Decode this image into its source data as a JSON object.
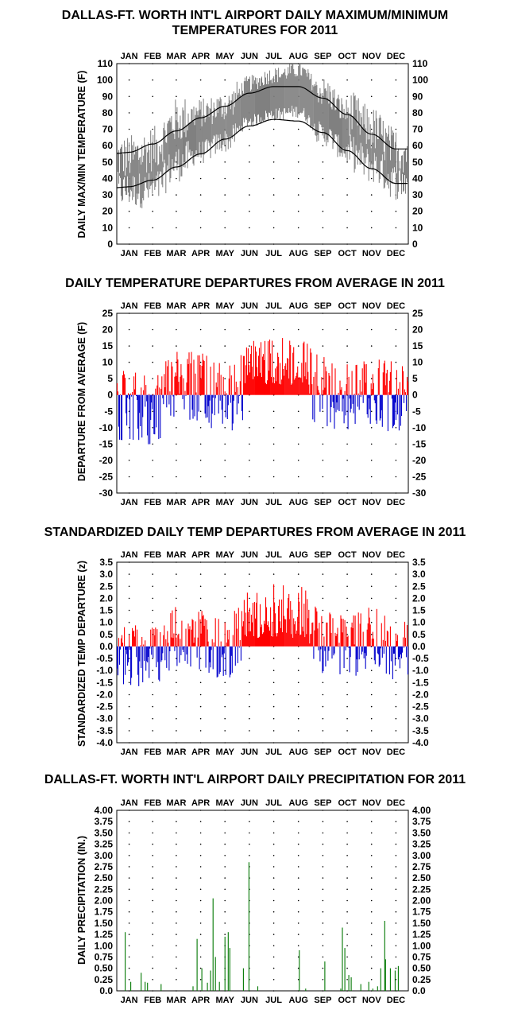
{
  "chart_data": [
    {
      "type": "line",
      "title": [
        "DALLAS-FT. WORTH INT'L AIRPORT DAILY MAXIMUM/MINIMUM",
        "TEMPERATURES FOR 2011"
      ],
      "ylabel": "DAILY MAX/MIN TEMPERATURE (F)",
      "ylim": [
        0,
        110
      ],
      "yticks": [
        0,
        10,
        20,
        30,
        40,
        50,
        60,
        70,
        80,
        90,
        100,
        110
      ],
      "categories": [
        "JAN",
        "FEB",
        "MAR",
        "APR",
        "MAY",
        "JUN",
        "JUL",
        "AUG",
        "SEP",
        "OCT",
        "NOV",
        "DEC"
      ],
      "grid": "dotted",
      "series": [
        {
          "values_monthly_normal_high": [
            56,
            61,
            69,
            77,
            84,
            92,
            96,
            96,
            89,
            79,
            67,
            58
          ]
        },
        {
          "values_monthly_normal_low": [
            35,
            39,
            47,
            55,
            64,
            72,
            76,
            75,
            68,
            57,
            46,
            37
          ]
        },
        {
          "values_monthly_obs_high": [
            53,
            58,
            75,
            80,
            84,
            98,
            103,
            106,
            93,
            80,
            70,
            57
          ]
        },
        {
          "values_monthly_obs_low": [
            33,
            33,
            49,
            56,
            63,
            75,
            79,
            81,
            67,
            56,
            48,
            38
          ]
        }
      ],
      "colors": {
        "observed": "#808080",
        "normal": "#000000"
      }
    },
    {
      "type": "bar",
      "title": "DAILY TEMPERATURE DEPARTURES FROM AVERAGE IN 2011",
      "ylabel": "DEPARTURE FROM AVERAGE (F)",
      "ylim": [
        -30,
        25
      ],
      "yticks": [
        25,
        20,
        15,
        10,
        5,
        0,
        -5,
        -10,
        -15,
        -20,
        -25,
        -30
      ],
      "categories": [
        "JAN",
        "FEB",
        "MAR",
        "APR",
        "MAY",
        "JUN",
        "JUL",
        "AUG",
        "SEP",
        "OCT",
        "NOV",
        "DEC"
      ],
      "monthly_mean_departure": [
        -3,
        -5,
        3,
        2,
        -1,
        4,
        5,
        6,
        1,
        0,
        2,
        -1
      ],
      "colors": {
        "positive": "#ff0000",
        "negative": "#0000cc"
      }
    },
    {
      "type": "bar",
      "title": "STANDARDIZED DAILY TEMP DEPARTURES FROM AVERAGE IN 2011",
      "ylabel": "STANDARDIZED TEMP DEPARTURE (z)",
      "ylim": [
        -4.0,
        3.5
      ],
      "yticks": [
        "3.5",
        "3.0",
        "2.5",
        "2.0",
        "1.5",
        "1.0",
        "0.5",
        "0.0",
        "-0.5",
        "-1.0",
        "-1.5",
        "-2.0",
        "-2.5",
        "-3.0",
        "-3.5",
        "-4.0"
      ],
      "categories": [
        "JAN",
        "FEB",
        "MAR",
        "APR",
        "MAY",
        "JUN",
        "JUL",
        "AUG",
        "SEP",
        "OCT",
        "NOV",
        "DEC"
      ],
      "monthly_mean_departure": [
        -0.4,
        -0.5,
        0.4,
        0.3,
        -0.1,
        0.8,
        1.2,
        1.3,
        0.2,
        0.0,
        0.3,
        -0.1
      ],
      "colors": {
        "positive": "#ff0000",
        "negative": "#0000cc"
      }
    },
    {
      "type": "bar",
      "title": "DALLAS-FT. WORTH INT'L AIRPORT DAILY PRECIPITATION FOR 2011",
      "ylabel": "DAILY PRECIPITATION (IN.)",
      "ylim": [
        0,
        4.0
      ],
      "yticks": [
        "4.00",
        "3.75",
        "3.50",
        "3.25",
        "3.00",
        "2.75",
        "2.50",
        "2.25",
        "2.00",
        "1.75",
        "1.50",
        "1.25",
        "1.00",
        "0.75",
        "0.50",
        "0.25",
        "0.0"
      ],
      "categories": [
        "JAN",
        "FEB",
        "MAR",
        "APR",
        "MAY",
        "JUN",
        "JUL",
        "AUG",
        "SEP",
        "OCT",
        "NOV",
        "DEC"
      ],
      "events": [
        {
          "day": 10,
          "value": 1.3
        },
        {
          "day": 17,
          "value": 0.2
        },
        {
          "day": 30,
          "value": 0.4
        },
        {
          "day": 35,
          "value": 0.2
        },
        {
          "day": 38,
          "value": 0.18
        },
        {
          "day": 55,
          "value": 0.15
        },
        {
          "day": 95,
          "value": 0.1
        },
        {
          "day": 100,
          "value": 1.15
        },
        {
          "day": 106,
          "value": 0.5
        },
        {
          "day": 113,
          "value": 0.18
        },
        {
          "day": 117,
          "value": 0.45
        },
        {
          "day": 120,
          "value": 2.05
        },
        {
          "day": 123,
          "value": 0.75
        },
        {
          "day": 128,
          "value": 0.2
        },
        {
          "day": 135,
          "value": 1.2
        },
        {
          "day": 139,
          "value": 1.3
        },
        {
          "day": 141,
          "value": 0.95
        },
        {
          "day": 158,
          "value": 0.5
        },
        {
          "day": 165,
          "value": 2.85
        },
        {
          "day": 176,
          "value": 0.1
        },
        {
          "day": 228,
          "value": 0.9
        },
        {
          "day": 236,
          "value": 0.05
        },
        {
          "day": 260,
          "value": 0.65
        },
        {
          "day": 280,
          "value": 0.05
        },
        {
          "day": 282,
          "value": 1.4
        },
        {
          "day": 285,
          "value": 0.95
        },
        {
          "day": 290,
          "value": 0.35
        },
        {
          "day": 293,
          "value": 0.3
        },
        {
          "day": 305,
          "value": 0.15
        },
        {
          "day": 315,
          "value": 0.2
        },
        {
          "day": 320,
          "value": 0.05
        },
        {
          "day": 326,
          "value": 0.1
        },
        {
          "day": 330,
          "value": 0.5
        },
        {
          "day": 335,
          "value": 1.55
        },
        {
          "day": 336,
          "value": 0.7
        },
        {
          "day": 342,
          "value": 0.5
        },
        {
          "day": 348,
          "value": 0.45
        },
        {
          "day": 352,
          "value": 0.55
        }
      ],
      "colors": {
        "bar": "#007700"
      }
    }
  ]
}
